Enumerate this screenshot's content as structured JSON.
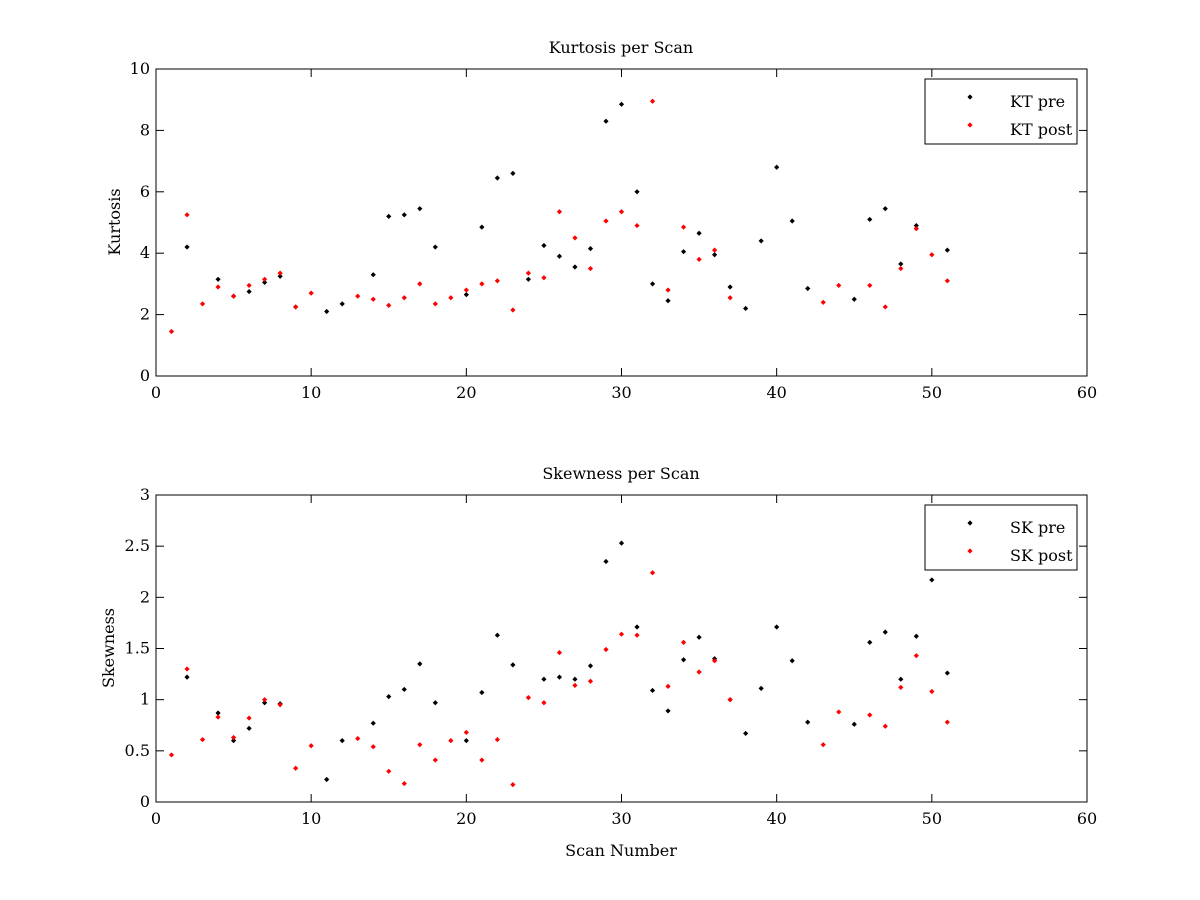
{
  "chart_data": [
    {
      "type": "scatter",
      "title": "Kurtosis per Scan",
      "xlabel": "",
      "ylabel": "Kurtosis",
      "xlim": [
        0,
        60
      ],
      "ylim": [
        0,
        10
      ],
      "xticks": [
        "0",
        "10",
        "20",
        "30",
        "40",
        "50",
        "60"
      ],
      "yticks": [
        "0",
        "2",
        "4",
        "6",
        "8",
        "10"
      ],
      "grid": false,
      "legend_position": "top-right",
      "series": [
        {
          "name": "KT pre",
          "color": "#000000",
          "marker": "diamond",
          "points": [
            [
              2,
              4.2
            ],
            [
              4,
              3.15
            ],
            [
              5,
              2.6
            ],
            [
              6,
              2.75
            ],
            [
              7,
              3.05
            ],
            [
              8,
              3.25
            ],
            [
              9,
              2.25
            ],
            [
              11,
              2.1
            ],
            [
              12,
              2.35
            ],
            [
              14,
              3.3
            ],
            [
              15,
              5.2
            ],
            [
              16,
              5.25
            ],
            [
              17,
              5.45
            ],
            [
              18,
              4.2
            ],
            [
              20,
              2.65
            ],
            [
              21,
              4.85
            ],
            [
              22,
              6.45
            ],
            [
              23,
              6.6
            ],
            [
              24,
              3.15
            ],
            [
              25,
              4.25
            ],
            [
              26,
              3.9
            ],
            [
              27,
              3.55
            ],
            [
              28,
              4.15
            ],
            [
              29,
              8.3
            ],
            [
              30,
              8.85
            ],
            [
              31,
              6.0
            ],
            [
              32,
              3.0
            ],
            [
              33,
              2.45
            ],
            [
              34,
              4.05
            ],
            [
              35,
              4.65
            ],
            [
              36,
              3.95
            ],
            [
              37,
              2.9
            ],
            [
              38,
              2.2
            ],
            [
              39,
              4.4
            ],
            [
              40,
              6.8
            ],
            [
              41,
              5.05
            ],
            [
              42,
              2.85
            ],
            [
              45,
              2.5
            ],
            [
              46,
              5.1
            ],
            [
              47,
              5.45
            ],
            [
              48,
              3.65
            ],
            [
              49,
              4.9
            ],
            [
              51,
              4.1
            ]
          ]
        },
        {
          "name": "KT post",
          "color": "#ff0000",
          "marker": "diamond",
          "points": [
            [
              1,
              1.45
            ],
            [
              2,
              5.25
            ],
            [
              3,
              2.35
            ],
            [
              4,
              2.9
            ],
            [
              5,
              2.6
            ],
            [
              6,
              2.95
            ],
            [
              7,
              3.15
            ],
            [
              8,
              3.35
            ],
            [
              9,
              2.25
            ],
            [
              10,
              2.7
            ],
            [
              13,
              2.6
            ],
            [
              14,
              2.5
            ],
            [
              15,
              2.3
            ],
            [
              16,
              2.55
            ],
            [
              17,
              3.0
            ],
            [
              18,
              2.35
            ],
            [
              19,
              2.55
            ],
            [
              20,
              2.8
            ],
            [
              21,
              3.0
            ],
            [
              22,
              3.1
            ],
            [
              23,
              2.15
            ],
            [
              24,
              3.35
            ],
            [
              25,
              3.2
            ],
            [
              26,
              5.35
            ],
            [
              27,
              4.5
            ],
            [
              28,
              3.5
            ],
            [
              29,
              5.05
            ],
            [
              30,
              5.35
            ],
            [
              31,
              4.9
            ],
            [
              32,
              8.95
            ],
            [
              33,
              2.8
            ],
            [
              34,
              4.85
            ],
            [
              35,
              3.8
            ],
            [
              36,
              4.1
            ],
            [
              37,
              2.55
            ],
            [
              43,
              2.4
            ],
            [
              44,
              2.95
            ],
            [
              46,
              2.95
            ],
            [
              47,
              2.25
            ],
            [
              48,
              3.5
            ],
            [
              49,
              4.8
            ],
            [
              50,
              3.95
            ],
            [
              51,
              3.1
            ]
          ]
        }
      ]
    },
    {
      "type": "scatter",
      "title": "Skewness per Scan",
      "xlabel": "Scan Number",
      "ylabel": "Skewness",
      "xlim": [
        0,
        60
      ],
      "ylim": [
        0,
        3
      ],
      "xticks": [
        "0",
        "10",
        "20",
        "30",
        "40",
        "50",
        "60"
      ],
      "yticks": [
        "0",
        "0.5",
        "1",
        "1.5",
        "2",
        "2.5",
        "3"
      ],
      "grid": false,
      "legend_position": "top-right",
      "series": [
        {
          "name": "SK pre",
          "color": "#000000",
          "marker": "diamond",
          "points": [
            [
              2,
              1.22
            ],
            [
              4,
              0.87
            ],
            [
              5,
              0.6
            ],
            [
              6,
              0.72
            ],
            [
              7,
              0.97
            ],
            [
              8,
              0.96
            ],
            [
              11,
              0.22
            ],
            [
              12,
              0.6
            ],
            [
              14,
              0.77
            ],
            [
              15,
              1.03
            ],
            [
              16,
              1.1
            ],
            [
              17,
              1.35
            ],
            [
              18,
              0.97
            ],
            [
              20,
              0.6
            ],
            [
              21,
              1.07
            ],
            [
              22,
              1.63
            ],
            [
              23,
              1.34
            ],
            [
              25,
              1.2
            ],
            [
              26,
              1.22
            ],
            [
              27,
              1.2
            ],
            [
              28,
              1.33
            ],
            [
              29,
              2.35
            ],
            [
              30,
              2.53
            ],
            [
              31,
              1.71
            ],
            [
              32,
              1.09
            ],
            [
              33,
              0.89
            ],
            [
              34,
              1.39
            ],
            [
              35,
              1.61
            ],
            [
              36,
              1.4
            ],
            [
              37,
              1.0
            ],
            [
              38,
              0.67
            ],
            [
              39,
              1.11
            ],
            [
              40,
              1.71
            ],
            [
              41,
              1.38
            ],
            [
              42,
              0.78
            ],
            [
              45,
              0.76
            ],
            [
              46,
              1.56
            ],
            [
              47,
              1.66
            ],
            [
              48,
              1.2
            ],
            [
              49,
              1.62
            ],
            [
              50,
              2.17
            ],
            [
              51,
              1.26
            ]
          ]
        },
        {
          "name": "SK post",
          "color": "#ff0000",
          "marker": "diamond",
          "points": [
            [
              1,
              0.46
            ],
            [
              2,
              1.3
            ],
            [
              3,
              0.61
            ],
            [
              4,
              0.83
            ],
            [
              5,
              0.63
            ],
            [
              6,
              0.82
            ],
            [
              7,
              1.0
            ],
            [
              8,
              0.95
            ],
            [
              9,
              0.33
            ],
            [
              10,
              0.55
            ],
            [
              13,
              0.62
            ],
            [
              14,
              0.54
            ],
            [
              15,
              0.3
            ],
            [
              16,
              0.18
            ],
            [
              17,
              0.56
            ],
            [
              18,
              0.41
            ],
            [
              19,
              0.6
            ],
            [
              20,
              0.68
            ],
            [
              21,
              0.41
            ],
            [
              22,
              0.61
            ],
            [
              23,
              0.17
            ],
            [
              24,
              1.02
            ],
            [
              25,
              0.97
            ],
            [
              26,
              1.46
            ],
            [
              27,
              1.14
            ],
            [
              28,
              1.18
            ],
            [
              29,
              1.49
            ],
            [
              30,
              1.64
            ],
            [
              31,
              1.63
            ],
            [
              32,
              2.24
            ],
            [
              33,
              1.13
            ],
            [
              34,
              1.56
            ],
            [
              35,
              1.27
            ],
            [
              36,
              1.38
            ],
            [
              37,
              1.0
            ],
            [
              43,
              0.56
            ],
            [
              44,
              0.88
            ],
            [
              46,
              0.85
            ],
            [
              47,
              0.74
            ],
            [
              48,
              1.12
            ],
            [
              49,
              1.43
            ],
            [
              50,
              1.08
            ],
            [
              51,
              0.78
            ]
          ]
        }
      ]
    }
  ]
}
